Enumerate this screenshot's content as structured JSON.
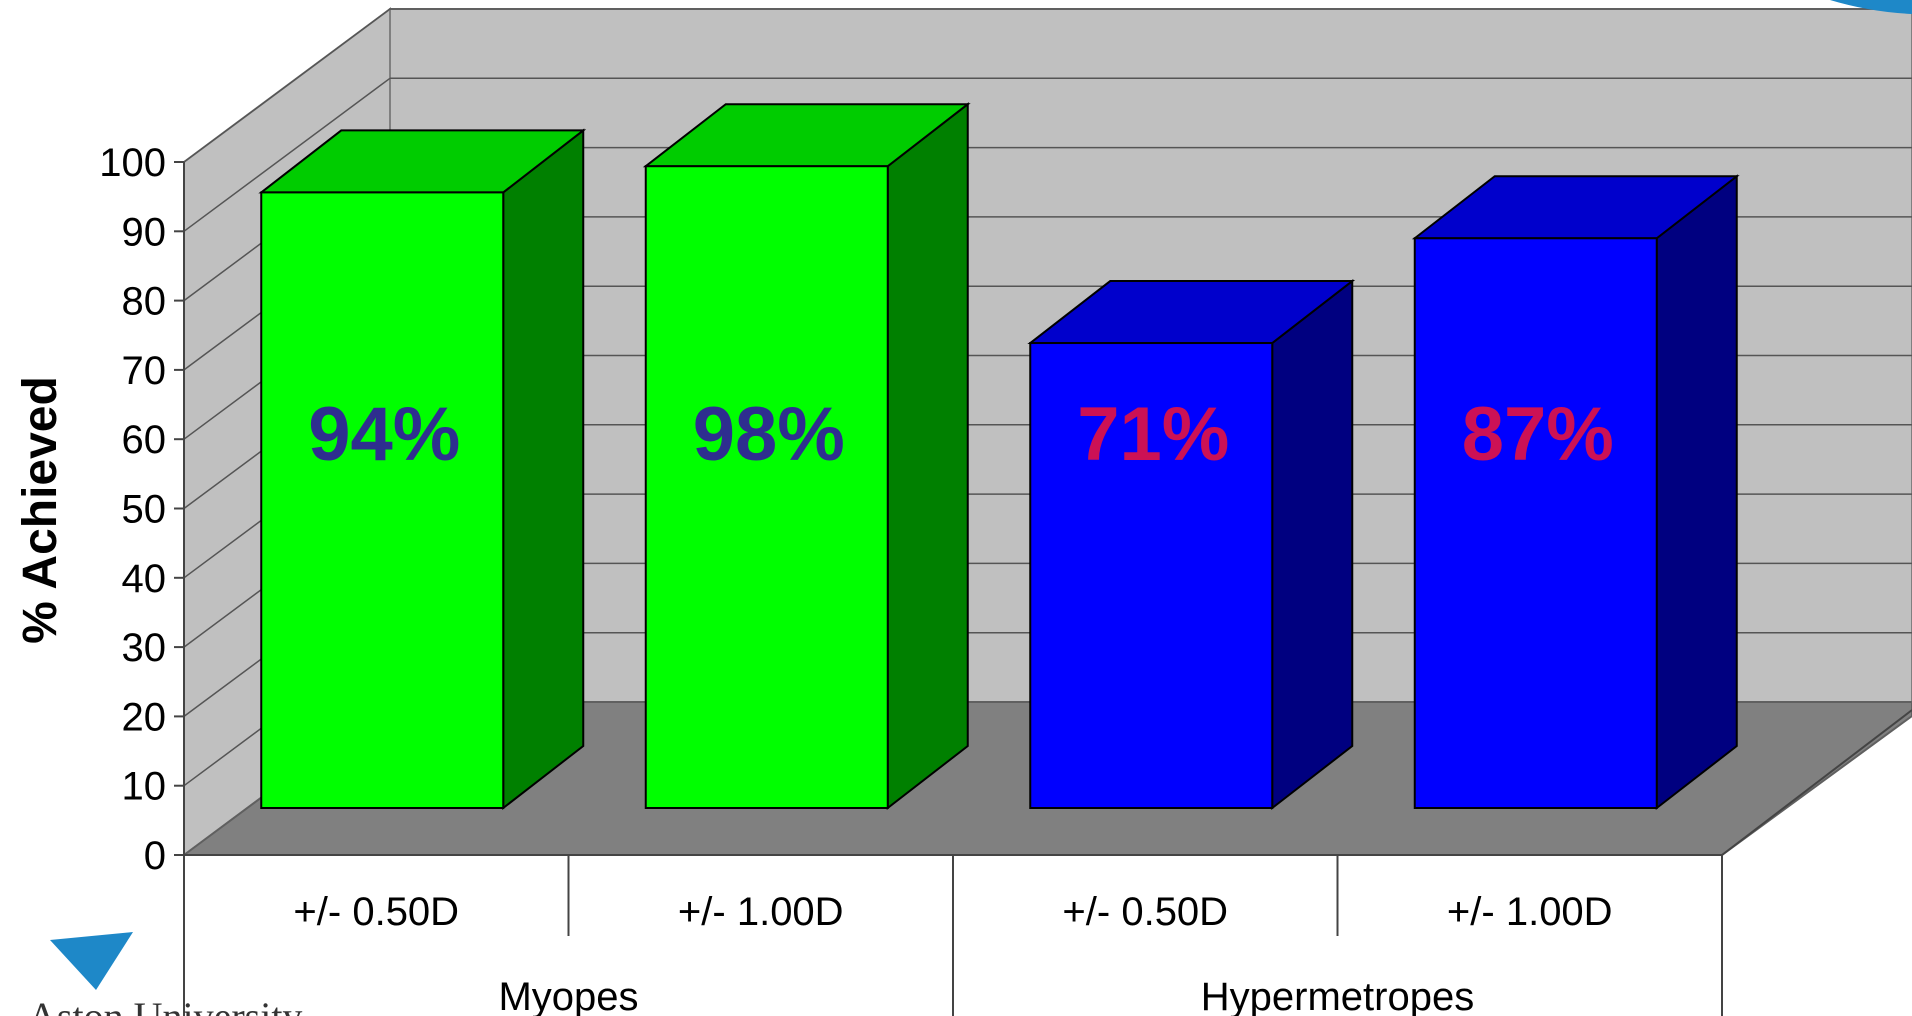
{
  "chart_data": {
    "type": "bar",
    "subtype": "3d-clustered-column",
    "ylabel": "% Achieved",
    "ylim": [
      0,
      100
    ],
    "y_ticks": [
      0,
      10,
      20,
      30,
      40,
      50,
      60,
      70,
      80,
      90,
      100
    ],
    "grid": true,
    "categories": [
      "+/- 0.50D",
      "+/- 1.00D",
      "+/- 0.50D",
      "+/- 1.00D"
    ],
    "groups": [
      {
        "label": "Myopes",
        "span": [
          0,
          1
        ]
      },
      {
        "label": "Hypermetropes",
        "span": [
          2,
          3
        ]
      }
    ],
    "values": [
      94,
      98,
      71,
      87
    ],
    "data_labels": [
      "94%",
      "98%",
      "71%",
      "87%"
    ],
    "bar_colors": [
      "#00FF00",
      "#00FF00",
      "#0000FF",
      "#0000FF"
    ],
    "bar_side_colors": [
      "#008000",
      "#008000",
      "#000080",
      "#000080"
    ],
    "bar_top_colors": [
      "#00CC00",
      "#00CC00",
      "#0000CC",
      "#0000CC"
    ],
    "label_colors": [
      "#2E2E8F",
      "#2E2E8F",
      "#CC1155",
      "#CC1155"
    ],
    "wall_color": "#C0C0C0",
    "floor_color": "#808080"
  },
  "logo": {
    "text": "Aston University",
    "color": "#1E88C8"
  }
}
